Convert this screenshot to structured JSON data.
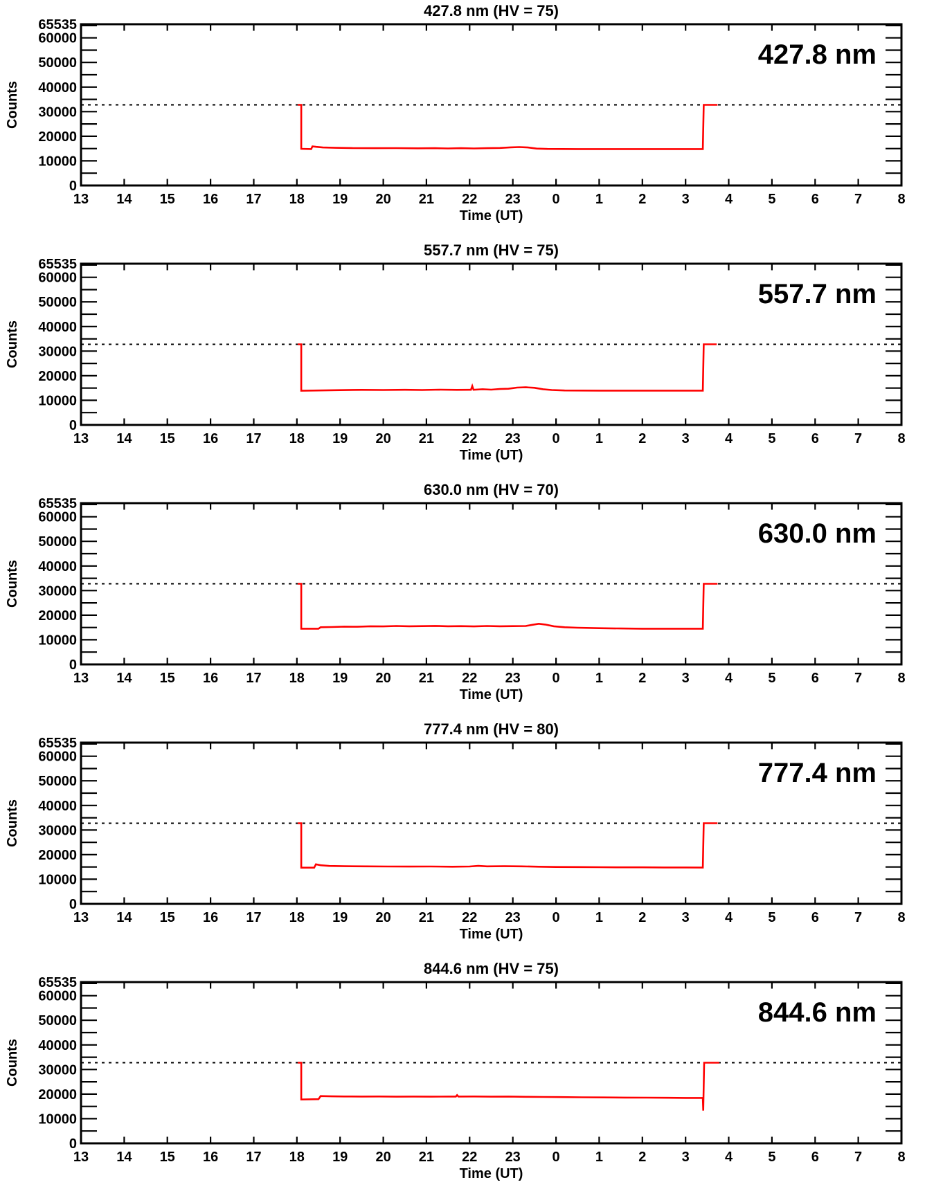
{
  "figure": {
    "background": "#ffffff",
    "n_charts": 5,
    "shared": {
      "xlabel": "Time (UT)",
      "ylabel": "Counts",
      "x_range": [
        13,
        32
      ],
      "y_range": [
        0,
        65535
      ],
      "x_tick_labels": [
        "13",
        "14",
        "15",
        "16",
        "17",
        "18",
        "19",
        "20",
        "21",
        "22",
        "23",
        "0",
        "1",
        "2",
        "3",
        "4",
        "5",
        "6",
        "7",
        "8"
      ],
      "y_tick_step": 5000,
      "y_major_labels": [
        [
          65535,
          "65535"
        ],
        [
          60000,
          "60000"
        ],
        [
          50000,
          "50000"
        ],
        [
          40000,
          "40000"
        ],
        [
          30000,
          "30000"
        ],
        [
          20000,
          "20000"
        ],
        [
          10000,
          "10000"
        ],
        [
          0,
          "0"
        ]
      ],
      "threshold_dashed_line": 32768,
      "axis_color": "#000000",
      "line_color": "#ff0000"
    }
  },
  "chart_data": [
    {
      "type": "line",
      "title": "427.8 nm (HV = 75)",
      "wavelength_label": "427.8 nm",
      "hv": 75,
      "xlabel": "Time (UT)",
      "ylabel": "Counts",
      "x_range": [
        13,
        32
      ],
      "y_range": [
        0,
        65535
      ],
      "x_tick_labels": [
        "13",
        "14",
        "15",
        "16",
        "17",
        "18",
        "19",
        "20",
        "21",
        "22",
        "23",
        "0",
        "1",
        "2",
        "3",
        "4",
        "5",
        "6",
        "7",
        "8"
      ],
      "y_tick_step": 5000,
      "y_major_labels": [
        [
          65535,
          "65535"
        ],
        [
          60000,
          "60000"
        ],
        [
          50000,
          "50000"
        ],
        [
          40000,
          "40000"
        ],
        [
          30000,
          "30000"
        ],
        [
          20000,
          "20000"
        ],
        [
          10000,
          "10000"
        ],
        [
          0,
          "0"
        ]
      ],
      "threshold_dashed_line": 32768,
      "line_color": "#ff0000",
      "points": [
        [
          18.02,
          32768
        ],
        [
          18.1,
          32768
        ],
        [
          18.1,
          14900
        ],
        [
          18.33,
          14800
        ],
        [
          18.36,
          15900
        ],
        [
          18.45,
          15700
        ],
        [
          18.6,
          15450
        ],
        [
          18.9,
          15300
        ],
        [
          19.3,
          15200
        ],
        [
          19.8,
          15150
        ],
        [
          20.3,
          15200
        ],
        [
          20.8,
          15100
        ],
        [
          21.2,
          15150
        ],
        [
          21.5,
          15050
        ],
        [
          21.8,
          15150
        ],
        [
          22.1,
          15050
        ],
        [
          22.4,
          15150
        ],
        [
          22.7,
          15250
        ],
        [
          22.95,
          15500
        ],
        [
          23.15,
          15600
        ],
        [
          23.35,
          15450
        ],
        [
          23.55,
          15000
        ],
        [
          23.8,
          14850
        ],
        [
          24.5,
          14800
        ],
        [
          25.5,
          14800
        ],
        [
          26.5,
          14800
        ],
        [
          27.4,
          14800
        ],
        [
          27.42,
          32768
        ],
        [
          27.74,
          32768
        ]
      ]
    },
    {
      "type": "line",
      "title": "557.7 nm (HV = 75)",
      "wavelength_label": "557.7 nm",
      "hv": 75,
      "xlabel": "Time (UT)",
      "ylabel": "Counts",
      "x_range": [
        13,
        32
      ],
      "y_range": [
        0,
        65535
      ],
      "x_tick_labels": [
        "13",
        "14",
        "15",
        "16",
        "17",
        "18",
        "19",
        "20",
        "21",
        "22",
        "23",
        "0",
        "1",
        "2",
        "3",
        "4",
        "5",
        "6",
        "7",
        "8"
      ],
      "y_tick_step": 5000,
      "y_major_labels": [
        [
          65535,
          "65535"
        ],
        [
          60000,
          "60000"
        ],
        [
          50000,
          "50000"
        ],
        [
          40000,
          "40000"
        ],
        [
          30000,
          "30000"
        ],
        [
          20000,
          "20000"
        ],
        [
          10000,
          "10000"
        ],
        [
          0,
          "0"
        ]
      ],
      "threshold_dashed_line": 32768,
      "line_color": "#ff0000",
      "points": [
        [
          18.02,
          32768
        ],
        [
          18.1,
          32768
        ],
        [
          18.1,
          13900
        ],
        [
          18.5,
          14000
        ],
        [
          19.0,
          14150
        ],
        [
          19.5,
          14250
        ],
        [
          20.0,
          14200
        ],
        [
          20.5,
          14300
        ],
        [
          20.9,
          14200
        ],
        [
          21.3,
          14350
        ],
        [
          21.7,
          14250
        ],
        [
          22.0,
          14300
        ],
        [
          22.03,
          14300
        ],
        [
          22.06,
          15800
        ],
        [
          22.09,
          14300
        ],
        [
          22.3,
          14500
        ],
        [
          22.5,
          14350
        ],
        [
          22.7,
          14600
        ],
        [
          22.9,
          14700
        ],
        [
          23.1,
          15200
        ],
        [
          23.3,
          15300
        ],
        [
          23.5,
          15100
        ],
        [
          23.7,
          14500
        ],
        [
          23.9,
          14200
        ],
        [
          24.2,
          14000
        ],
        [
          25.0,
          13950
        ],
        [
          26.0,
          13950
        ],
        [
          27.0,
          13950
        ],
        [
          27.4,
          13950
        ],
        [
          27.42,
          32768
        ],
        [
          27.72,
          32768
        ]
      ]
    },
    {
      "type": "line",
      "title": "630.0 nm (HV = 70)",
      "wavelength_label": "630.0 nm",
      "hv": 70,
      "xlabel": "Time (UT)",
      "ylabel": "Counts",
      "x_range": [
        13,
        32
      ],
      "y_range": [
        0,
        65535
      ],
      "x_tick_labels": [
        "13",
        "14",
        "15",
        "16",
        "17",
        "18",
        "19",
        "20",
        "21",
        "22",
        "23",
        "0",
        "1",
        "2",
        "3",
        "4",
        "5",
        "6",
        "7",
        "8"
      ],
      "y_tick_step": 5000,
      "y_major_labels": [
        [
          65535,
          "65535"
        ],
        [
          60000,
          "60000"
        ],
        [
          50000,
          "50000"
        ],
        [
          40000,
          "40000"
        ],
        [
          30000,
          "30000"
        ],
        [
          20000,
          "20000"
        ],
        [
          10000,
          "10000"
        ],
        [
          0,
          "0"
        ]
      ],
      "threshold_dashed_line": 32768,
      "line_color": "#ff0000",
      "points": [
        [
          18.02,
          32768
        ],
        [
          18.1,
          32768
        ],
        [
          18.1,
          14500
        ],
        [
          18.5,
          14500
        ],
        [
          18.55,
          15100
        ],
        [
          18.8,
          15200
        ],
        [
          19.1,
          15350
        ],
        [
          19.4,
          15300
        ],
        [
          19.7,
          15500
        ],
        [
          20.0,
          15450
        ],
        [
          20.3,
          15600
        ],
        [
          20.6,
          15500
        ],
        [
          20.9,
          15550
        ],
        [
          21.2,
          15650
        ],
        [
          21.5,
          15500
        ],
        [
          21.8,
          15550
        ],
        [
          22.1,
          15450
        ],
        [
          22.4,
          15600
        ],
        [
          22.7,
          15500
        ],
        [
          23.0,
          15550
        ],
        [
          23.3,
          15600
        ],
        [
          23.45,
          16100
        ],
        [
          23.6,
          16500
        ],
        [
          23.75,
          16200
        ],
        [
          23.95,
          15500
        ],
        [
          24.2,
          15100
        ],
        [
          24.5,
          14900
        ],
        [
          25.0,
          14700
        ],
        [
          25.5,
          14600
        ],
        [
          26.0,
          14500
        ],
        [
          26.5,
          14500
        ],
        [
          27.0,
          14500
        ],
        [
          27.4,
          14500
        ],
        [
          27.42,
          32768
        ],
        [
          27.74,
          32768
        ]
      ]
    },
    {
      "type": "line",
      "title": "777.4 nm (HV = 80)",
      "wavelength_label": "777.4 nm",
      "hv": 80,
      "xlabel": "Time (UT)",
      "ylabel": "Counts",
      "x_range": [
        13,
        32
      ],
      "y_range": [
        0,
        65535
      ],
      "x_tick_labels": [
        "13",
        "14",
        "15",
        "16",
        "17",
        "18",
        "19",
        "20",
        "21",
        "22",
        "23",
        "0",
        "1",
        "2",
        "3",
        "4",
        "5",
        "6",
        "7",
        "8"
      ],
      "y_tick_step": 5000,
      "y_major_labels": [
        [
          65535,
          "65535"
        ],
        [
          60000,
          "60000"
        ],
        [
          50000,
          "50000"
        ],
        [
          40000,
          "40000"
        ],
        [
          30000,
          "30000"
        ],
        [
          20000,
          "20000"
        ],
        [
          10000,
          "10000"
        ],
        [
          0,
          "0"
        ]
      ],
      "threshold_dashed_line": 32768,
      "line_color": "#ff0000",
      "points": [
        [
          18.02,
          32768
        ],
        [
          18.1,
          32768
        ],
        [
          18.1,
          14700
        ],
        [
          18.4,
          14700
        ],
        [
          18.44,
          16100
        ],
        [
          18.55,
          15700
        ],
        [
          18.75,
          15400
        ],
        [
          19.1,
          15300
        ],
        [
          19.6,
          15250
        ],
        [
          20.1,
          15200
        ],
        [
          20.6,
          15150
        ],
        [
          21.1,
          15200
        ],
        [
          21.6,
          15100
        ],
        [
          22.0,
          15200
        ],
        [
          22.2,
          15450
        ],
        [
          22.4,
          15250
        ],
        [
          22.8,
          15300
        ],
        [
          23.2,
          15250
        ],
        [
          23.6,
          15100
        ],
        [
          24.0,
          15000
        ],
        [
          24.5,
          14950
        ],
        [
          25.0,
          14900
        ],
        [
          25.5,
          14850
        ],
        [
          26.0,
          14850
        ],
        [
          26.5,
          14800
        ],
        [
          27.0,
          14800
        ],
        [
          27.4,
          14750
        ],
        [
          27.42,
          32768
        ],
        [
          27.74,
          32768
        ]
      ]
    },
    {
      "type": "line",
      "title": "844.6 nm (HV = 75)",
      "wavelength_label": "844.6 nm",
      "hv": 75,
      "xlabel": "Time (UT)",
      "ylabel": "Counts",
      "x_range": [
        13,
        32
      ],
      "y_range": [
        0,
        65535
      ],
      "x_tick_labels": [
        "13",
        "14",
        "15",
        "16",
        "17",
        "18",
        "19",
        "20",
        "21",
        "22",
        "23",
        "0",
        "1",
        "2",
        "3",
        "4",
        "5",
        "6",
        "7",
        "8"
      ],
      "y_tick_step": 5000,
      "y_major_labels": [
        [
          65535,
          "65535"
        ],
        [
          60000,
          "60000"
        ],
        [
          50000,
          "50000"
        ],
        [
          40000,
          "40000"
        ],
        [
          30000,
          "30000"
        ],
        [
          20000,
          "20000"
        ],
        [
          10000,
          "10000"
        ],
        [
          0,
          "0"
        ]
      ],
      "threshold_dashed_line": 32768,
      "line_color": "#ff0000",
      "points": [
        [
          18.02,
          32768
        ],
        [
          18.1,
          32768
        ],
        [
          18.1,
          17800
        ],
        [
          18.3,
          17900
        ],
        [
          18.5,
          17950
        ],
        [
          18.55,
          19200
        ],
        [
          18.8,
          19100
        ],
        [
          19.1,
          19050
        ],
        [
          19.5,
          19000
        ],
        [
          19.9,
          19050
        ],
        [
          20.3,
          18950
        ],
        [
          20.7,
          19000
        ],
        [
          21.1,
          18950
        ],
        [
          21.5,
          19000
        ],
        [
          21.68,
          19000
        ],
        [
          21.71,
          19600
        ],
        [
          21.74,
          19000
        ],
        [
          22.1,
          19050
        ],
        [
          22.5,
          18950
        ],
        [
          22.9,
          19000
        ],
        [
          23.3,
          18900
        ],
        [
          23.7,
          18850
        ],
        [
          24.1,
          18800
        ],
        [
          24.6,
          18700
        ],
        [
          25.1,
          18650
        ],
        [
          25.6,
          18600
        ],
        [
          26.1,
          18550
        ],
        [
          26.6,
          18500
        ],
        [
          27.0,
          18450
        ],
        [
          27.4,
          18450
        ],
        [
          27.41,
          13300
        ],
        [
          27.43,
          32768
        ],
        [
          27.78,
          32768
        ]
      ]
    }
  ]
}
